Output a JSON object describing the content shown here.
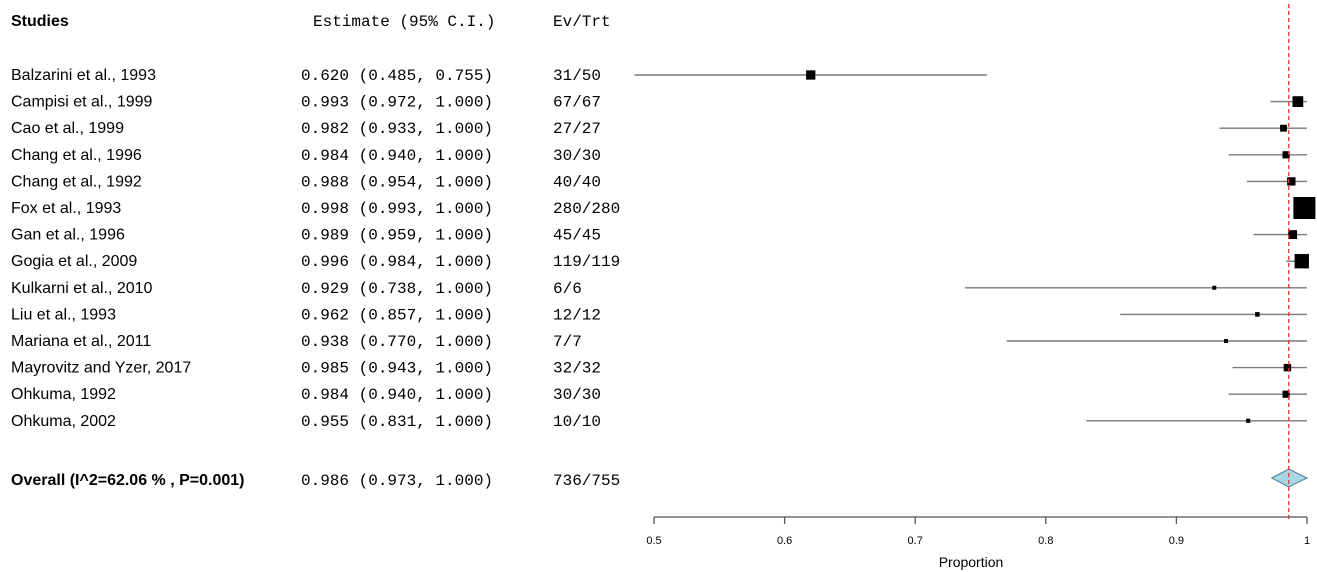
{
  "headers": {
    "studies": "Studies",
    "estimate": "Estimate (95% C.I.)",
    "evtrt": "Ev/Trt"
  },
  "chart_data": {
    "type": "forest",
    "xlabel": "Proportion",
    "xlim": [
      0.5,
      1.0
    ],
    "ticks": [
      "0.5",
      "0.6",
      "0.7",
      "0.8",
      "0.9",
      "1"
    ],
    "reference_line": 0.986,
    "studies": [
      {
        "label": "Balzarini et al., 1993",
        "estimate": 0.62,
        "lower": 0.485,
        "upper": 0.755,
        "est_text": "0.620 (0.485, 0.755)",
        "evtrt": "31/50",
        "n": 50
      },
      {
        "label": "Campisi et al., 1999",
        "estimate": 0.993,
        "lower": 0.972,
        "upper": 1.0,
        "est_text": "0.993 (0.972, 1.000)",
        "evtrt": "67/67",
        "n": 67
      },
      {
        "label": "Cao  et al., 1999",
        "estimate": 0.982,
        "lower": 0.933,
        "upper": 1.0,
        "est_text": "0.982 (0.933, 1.000)",
        "evtrt": "27/27",
        "n": 27
      },
      {
        "label": "Chang et al., 1996",
        "estimate": 0.984,
        "lower": 0.94,
        "upper": 1.0,
        "est_text": "0.984 (0.940, 1.000)",
        "evtrt": "30/30",
        "n": 30
      },
      {
        "label": "Chang  et al.,  1992",
        "estimate": 0.988,
        "lower": 0.954,
        "upper": 1.0,
        "est_text": "0.988 (0.954, 1.000)",
        "evtrt": "40/40",
        "n": 40
      },
      {
        "label": "Fox  et al.,  1993",
        "estimate": 0.998,
        "lower": 0.993,
        "upper": 1.0,
        "est_text": "0.998 (0.993, 1.000)",
        "evtrt": "280/280",
        "n": 280
      },
      {
        "label": "Gan  et al., 1996",
        "estimate": 0.989,
        "lower": 0.959,
        "upper": 1.0,
        "est_text": "0.989 (0.959, 1.000)",
        "evtrt": "45/45",
        "n": 45
      },
      {
        "label": "Gogia  et al., 2009",
        "estimate": 0.996,
        "lower": 0.984,
        "upper": 1.0,
        "est_text": "0.996 (0.984, 1.000)",
        "evtrt": "119/119",
        "n": 119
      },
      {
        "label": "Kulkarni  et al., 2010",
        "estimate": 0.929,
        "lower": 0.738,
        "upper": 1.0,
        "est_text": "0.929 (0.738, 1.000)",
        "evtrt": "6/6",
        "n": 6
      },
      {
        "label": "Liu et al.,  1993",
        "estimate": 0.962,
        "lower": 0.857,
        "upper": 1.0,
        "est_text": "0.962 (0.857, 1.000)",
        "evtrt": "12/12",
        "n": 12
      },
      {
        "label": "Mariana et al.,  2011",
        "estimate": 0.938,
        "lower": 0.77,
        "upper": 1.0,
        "est_text": "0.938 (0.770, 1.000)",
        "evtrt": "7/7",
        "n": 7
      },
      {
        "label": "Mayrovitz and Yzer, 2017",
        "estimate": 0.985,
        "lower": 0.943,
        "upper": 1.0,
        "est_text": "0.985 (0.943, 1.000)",
        "evtrt": "32/32",
        "n": 32
      },
      {
        "label": "Ohkuma, 1992",
        "estimate": 0.984,
        "lower": 0.94,
        "upper": 1.0,
        "est_text": "0.984 (0.940, 1.000)",
        "evtrt": "30/30",
        "n": 30
      },
      {
        "label": "Ohkuma, 2002",
        "estimate": 0.955,
        "lower": 0.831,
        "upper": 1.0,
        "est_text": "0.955 (0.831, 1.000)",
        "evtrt": "10/10",
        "n": 10
      }
    ],
    "overall": {
      "label": "Overall (I^2=62.06 % , P=0.001)",
      "estimate": 0.986,
      "lower": 0.973,
      "upper": 1.0,
      "est_text": "0.986 (0.973, 1.000)",
      "evtrt": "736/755"
    },
    "colors": {
      "marker": "#000000",
      "ci_line": "#7a7a7a",
      "diamond_fill": "#a9d6e5",
      "diamond_stroke": "#4f7f95",
      "reference_line": "#e8372c"
    }
  }
}
